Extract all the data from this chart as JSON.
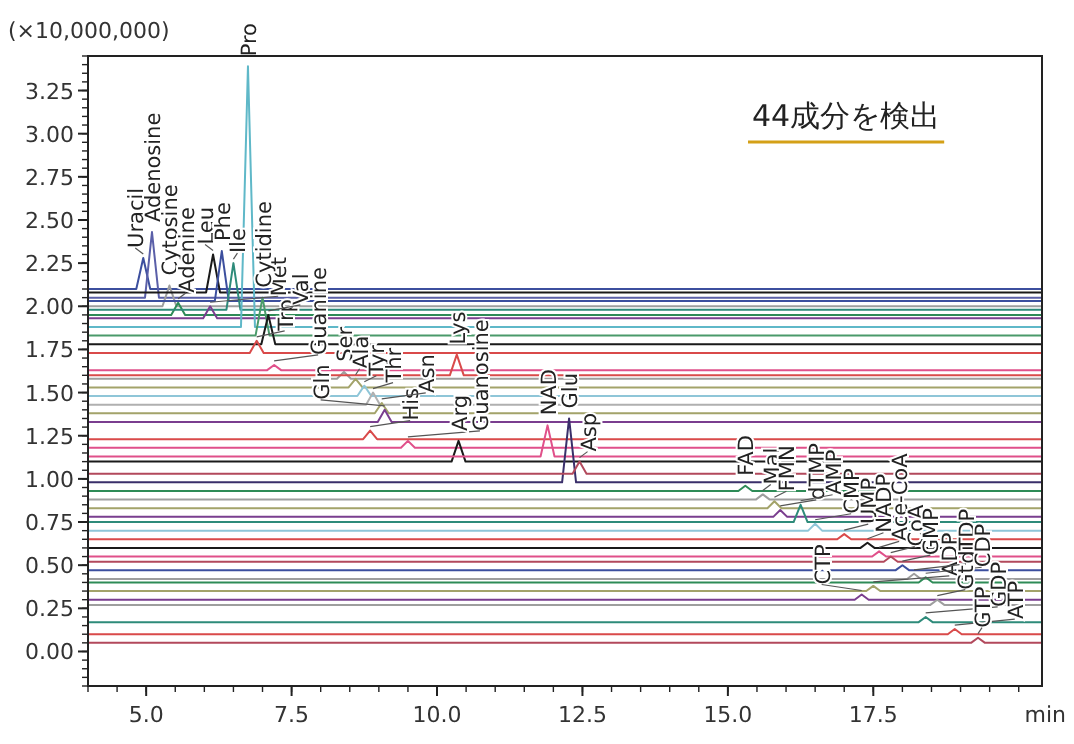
{
  "chart_data": {
    "type": "line",
    "ylabel": "(×10,000,000)",
    "xlabel": "min",
    "annotations": [
      "44成分を検出",
      {
        "text": "Uracil",
        "x": 4.95,
        "y": 2.28
      },
      {
        "text": "Adenosine",
        "x": 5.1,
        "y": 2.43
      },
      {
        "text": "Cytosine",
        "x": 5.4,
        "y": 2.12
      },
      {
        "text": "Adenine",
        "x": 5.55,
        "y": 2.02
      },
      {
        "text": "Leu",
        "x": 6.15,
        "y": 2.3
      },
      {
        "text": "Phe",
        "x": 6.3,
        "y": 2.32
      },
      {
        "text": "Ile",
        "x": 6.5,
        "y": 2.25
      },
      {
        "text": "Met",
        "x": 6.1,
        "y": 2.0
      },
      {
        "text": "Pro",
        "x": 6.75,
        "y": 3.39
      },
      {
        "text": "Cytidine",
        "x": 7.0,
        "y": 2.05
      },
      {
        "text": "Val",
        "x": 7.1,
        "y": 1.95
      },
      {
        "text": "Trp",
        "x": 6.9,
        "y": 1.8
      },
      {
        "text": "Guanine",
        "x": 7.2,
        "y": 1.66
      },
      {
        "text": "Ser",
        "x": 8.4,
        "y": 1.62
      },
      {
        "text": "Ala",
        "x": 8.6,
        "y": 1.58
      },
      {
        "text": "Tyr",
        "x": 8.75,
        "y": 1.54
      },
      {
        "text": "Thr",
        "x": 8.9,
        "y": 1.5
      },
      {
        "text": "Asn",
        "x": 9.05,
        "y": 1.44
      },
      {
        "text": "Gln",
        "x": 9.1,
        "y": 1.4
      },
      {
        "text": "His",
        "x": 8.85,
        "y": 1.28
      },
      {
        "text": "Guanosine",
        "x": 9.5,
        "y": 1.22
      },
      {
        "text": "Arg",
        "x": 10.37,
        "y": 1.22
      },
      {
        "text": "Lys",
        "x": 10.34,
        "y": 1.72
      },
      {
        "text": "NAD",
        "x": 11.9,
        "y": 1.31
      },
      {
        "text": "Glu",
        "x": 12.27,
        "y": 1.35
      },
      {
        "text": "Asp",
        "x": 12.45,
        "y": 1.1
      },
      {
        "text": "FAD",
        "x": 15.3,
        "y": 0.96
      },
      {
        "text": "Mal",
        "x": 15.6,
        "y": 0.91
      },
      {
        "text": "FMN",
        "x": 15.8,
        "y": 0.87
      },
      {
        "text": "dTMP",
        "x": 15.9,
        "y": 0.82
      },
      {
        "text": "AMP",
        "x": 16.25,
        "y": 0.85
      },
      {
        "text": "CMP",
        "x": 16.5,
        "y": 0.74
      },
      {
        "text": "UMP",
        "x": 17.0,
        "y": 0.68
      },
      {
        "text": "NADP",
        "x": 17.4,
        "y": 0.63
      },
      {
        "text": "Ace-CoA",
        "x": 17.6,
        "y": 0.58
      },
      {
        "text": "CoA",
        "x": 17.8,
        "y": 0.55
      },
      {
        "text": "GMP",
        "x": 18.0,
        "y": 0.5
      },
      {
        "text": "dTDP",
        "x": 18.2,
        "y": 0.45
      },
      {
        "text": "CDP",
        "x": 18.4,
        "y": 0.43
      },
      {
        "text": "ADP",
        "x": 17.5,
        "y": 0.38
      },
      {
        "text": "CTP",
        "x": 17.3,
        "y": 0.33
      },
      {
        "text": "Gt",
        "x": 18.6,
        "y": 0.3
      },
      {
        "text": "GDP",
        "x": 18.4,
        "y": 0.2
      },
      {
        "text": "ATP",
        "x": 18.9,
        "y": 0.13
      },
      {
        "text": "GTP",
        "x": 19.3,
        "y": 0.08
      }
    ],
    "xlim": [
      4.0,
      20.4
    ],
    "ylim": [
      -0.2,
      3.45
    ],
    "xticks": [
      {
        "value": 5,
        "label": "5.0"
      },
      7.5,
      {
        "value": 10,
        "label": "10.0"
      },
      12.5,
      {
        "value": 15,
        "label": "15.0"
      },
      17.5
    ],
    "yticks": [
      {
        "value": 0,
        "label": "0.00"
      },
      0.25,
      {
        "value": 0.5,
        "label": "0.50"
      },
      0.75,
      {
        "value": 1,
        "label": "1.00"
      },
      1.25,
      {
        "value": 1.5,
        "label": "1.50"
      },
      1.75,
      {
        "value": 2,
        "label": "2.00"
      },
      2.25,
      {
        "value": 2.5,
        "label": "2.50"
      },
      2.75,
      {
        "value": 3,
        "label": "3.00"
      },
      3.25
    ],
    "grid": false,
    "marker": "none",
    "series": [
      {
        "color": "#3c4f9e",
        "x": [
          4.0,
          4.83,
          4.95,
          5.07,
          20.4
        ],
        "values": [
          2.1,
          2.1,
          2.28,
          2.1,
          2.1
        ]
      },
      {
        "color": "#5a5fa8",
        "x": [
          4.0,
          4.98,
          5.1,
          5.22,
          20.4
        ],
        "values": [
          2.05,
          2.05,
          2.43,
          2.05,
          2.05
        ]
      },
      {
        "color": "#9e9e9e",
        "x": [
          4.0,
          5.28,
          5.4,
          5.52,
          20.4
        ],
        "values": [
          2.0,
          2.0,
          2.12,
          2.0,
          2.0
        ]
      },
      {
        "color": "#2e8b57",
        "x": [
          4.0,
          5.43,
          5.55,
          5.67,
          20.4
        ],
        "values": [
          1.95,
          1.95,
          2.02,
          1.95,
          1.95
        ]
      },
      {
        "color": "#1a1a1a",
        "x": [
          4.0,
          6.03,
          6.15,
          6.27,
          20.4
        ],
        "values": [
          2.08,
          2.08,
          2.3,
          2.08,
          2.08
        ]
      },
      {
        "color": "#3c4f9e",
        "x": [
          4.0,
          6.18,
          6.3,
          6.42,
          20.4
        ],
        "values": [
          2.03,
          2.03,
          2.32,
          2.03,
          2.03
        ]
      },
      {
        "color": "#2e8b7a",
        "x": [
          4.0,
          6.38,
          6.5,
          6.62,
          20.4
        ],
        "values": [
          1.98,
          1.98,
          2.25,
          1.98,
          1.98
        ]
      },
      {
        "color": "#7a3e8f",
        "x": [
          4.0,
          5.98,
          6.1,
          6.22,
          20.4
        ],
        "values": [
          1.93,
          1.93,
          2.0,
          1.93,
          1.93
        ]
      },
      {
        "color": "#5fb8c8",
        "x": [
          4.0,
          6.63,
          6.75,
          6.87,
          20.4
        ],
        "values": [
          1.88,
          1.88,
          3.39,
          1.88,
          1.88
        ]
      },
      {
        "color": "#4a9a6a",
        "x": [
          4.0,
          6.88,
          7.0,
          7.12,
          20.4
        ],
        "values": [
          1.83,
          1.83,
          2.05,
          1.83,
          1.83
        ]
      },
      {
        "color": "#1a1a1a",
        "x": [
          4.0,
          6.98,
          7.1,
          7.22,
          20.4
        ],
        "values": [
          1.78,
          1.78,
          1.95,
          1.78,
          1.78
        ]
      },
      {
        "color": "#d94a4a",
        "x": [
          4.0,
          6.78,
          6.9,
          7.02,
          20.4
        ],
        "values": [
          1.73,
          1.73,
          1.8,
          1.73,
          1.73
        ]
      },
      {
        "color": "#e0508a",
        "x": [
          4.0,
          7.08,
          7.2,
          7.32,
          20.4
        ],
        "values": [
          1.63,
          1.63,
          1.66,
          1.63,
          1.63
        ]
      },
      {
        "color": "#9e9e9e",
        "x": [
          4.0,
          8.28,
          8.4,
          8.52,
          20.4
        ],
        "values": [
          1.58,
          1.58,
          1.62,
          1.58,
          1.58
        ]
      },
      {
        "color": "#a3a36a",
        "x": [
          4.0,
          8.48,
          8.6,
          8.72,
          20.4
        ],
        "values": [
          1.53,
          1.53,
          1.58,
          1.53,
          1.53
        ]
      },
      {
        "color": "#8fc6d8",
        "x": [
          4.0,
          8.63,
          8.75,
          8.87,
          20.4
        ],
        "values": [
          1.48,
          1.48,
          1.54,
          1.48,
          1.48
        ]
      },
      {
        "color": "#b0b0b0",
        "x": [
          4.0,
          8.78,
          8.9,
          9.02,
          20.4
        ],
        "values": [
          1.43,
          1.43,
          1.5,
          1.43,
          1.43
        ]
      },
      {
        "color": "#a3a36a",
        "x": [
          4.0,
          8.93,
          9.05,
          9.17,
          20.4
        ],
        "values": [
          1.38,
          1.38,
          1.44,
          1.38,
          1.38
        ]
      },
      {
        "color": "#7a3e8f",
        "x": [
          4.0,
          8.98,
          9.1,
          9.22,
          20.4
        ],
        "values": [
          1.33,
          1.33,
          1.4,
          1.33,
          1.33
        ]
      },
      {
        "color": "#d94a4a",
        "x": [
          4.0,
          8.73,
          8.85,
          8.97,
          20.4
        ],
        "values": [
          1.23,
          1.23,
          1.28,
          1.23,
          1.23
        ]
      },
      {
        "color": "#e0508a",
        "x": [
          4.0,
          9.38,
          9.5,
          9.62,
          20.4
        ],
        "values": [
          1.18,
          1.18,
          1.22,
          1.18,
          1.18
        ]
      },
      {
        "color": "#1a1a1a",
        "x": [
          4.0,
          10.25,
          10.37,
          10.49,
          20.4
        ],
        "values": [
          1.1,
          1.1,
          1.22,
          1.1,
          1.1
        ]
      },
      {
        "color": "#d94a4a",
        "x": [
          4.0,
          10.22,
          10.34,
          10.46,
          20.4
        ],
        "values": [
          1.6,
          1.6,
          1.72,
          1.6,
          1.6
        ]
      },
      {
        "color": "#e0508a",
        "x": [
          4.0,
          11.78,
          11.9,
          12.02,
          20.4
        ],
        "values": [
          1.13,
          1.13,
          1.31,
          1.13,
          1.13
        ]
      },
      {
        "color": "#3a2f6a",
        "x": [
          4.0,
          12.15,
          12.27,
          12.39,
          20.4
        ],
        "values": [
          0.98,
          0.98,
          1.35,
          0.98,
          0.98
        ]
      },
      {
        "color": "#b2495c",
        "x": [
          4.0,
          12.33,
          12.45,
          12.57,
          20.4
        ],
        "values": [
          1.03,
          1.03,
          1.1,
          1.03,
          1.03
        ]
      },
      {
        "color": "#2e8b57",
        "x": [
          4.0,
          15.18,
          15.3,
          15.42,
          20.4
        ],
        "values": [
          0.93,
          0.93,
          0.96,
          0.93,
          0.93
        ]
      },
      {
        "color": "#9e9e9e",
        "x": [
          4.0,
          15.48,
          15.6,
          15.72,
          20.4
        ],
        "values": [
          0.88,
          0.88,
          0.91,
          0.88,
          0.88
        ]
      },
      {
        "color": "#a3a36a",
        "x": [
          4.0,
          15.68,
          15.8,
          15.92,
          20.4
        ],
        "values": [
          0.83,
          0.83,
          0.87,
          0.83,
          0.83
        ]
      },
      {
        "color": "#7a3e8f",
        "x": [
          4.0,
          15.78,
          15.9,
          16.02,
          20.4
        ],
        "values": [
          0.78,
          0.78,
          0.82,
          0.78,
          0.78
        ]
      },
      {
        "color": "#2e8b7a",
        "x": [
          4.0,
          16.13,
          16.25,
          16.37,
          20.4
        ],
        "values": [
          0.75,
          0.75,
          0.85,
          0.75,
          0.75
        ]
      },
      {
        "color": "#8fc6d8",
        "x": [
          4.0,
          16.38,
          16.5,
          16.62,
          20.4
        ],
        "values": [
          0.7,
          0.7,
          0.74,
          0.7,
          0.7
        ]
      },
      {
        "color": "#d94a4a",
        "x": [
          4.0,
          16.88,
          17.0,
          17.12,
          20.4
        ],
        "values": [
          0.65,
          0.65,
          0.68,
          0.65,
          0.65
        ]
      },
      {
        "color": "#1a1a1a",
        "x": [
          4.0,
          17.28,
          17.4,
          17.52,
          20.4
        ],
        "values": [
          0.6,
          0.6,
          0.63,
          0.6,
          0.6
        ]
      },
      {
        "color": "#e0508a",
        "x": [
          4.0,
          17.48,
          17.6,
          17.72,
          20.4
        ],
        "values": [
          0.55,
          0.55,
          0.58,
          0.55,
          0.55
        ]
      },
      {
        "color": "#b2495c",
        "x": [
          4.0,
          17.68,
          17.8,
          17.92,
          20.4
        ],
        "values": [
          0.52,
          0.52,
          0.55,
          0.52,
          0.52
        ]
      },
      {
        "color": "#3c4f9e",
        "x": [
          4.0,
          17.88,
          18.0,
          18.12,
          20.4
        ],
        "values": [
          0.47,
          0.47,
          0.5,
          0.47,
          0.47
        ]
      },
      {
        "color": "#9e9e9e",
        "x": [
          4.0,
          18.08,
          18.2,
          18.32,
          20.4
        ],
        "values": [
          0.42,
          0.42,
          0.45,
          0.42,
          0.42
        ]
      },
      {
        "color": "#2e8b57",
        "x": [
          4.0,
          18.28,
          18.4,
          18.52,
          20.4
        ],
        "values": [
          0.4,
          0.4,
          0.43,
          0.4,
          0.4
        ]
      },
      {
        "color": "#a3a36a",
        "x": [
          4.0,
          17.38,
          17.5,
          17.62,
          20.4
        ],
        "values": [
          0.35,
          0.35,
          0.38,
          0.35,
          0.35
        ]
      },
      {
        "color": "#7a3e8f",
        "x": [
          4.0,
          17.18,
          17.3,
          17.42,
          20.4
        ],
        "values": [
          0.3,
          0.3,
          0.33,
          0.3,
          0.3
        ]
      },
      {
        "color": "#9e9e9e",
        "x": [
          4.0,
          18.48,
          18.6,
          18.72,
          20.4
        ],
        "values": [
          0.27,
          0.27,
          0.3,
          0.27,
          0.27
        ]
      },
      {
        "color": "#2e8b7a",
        "x": [
          4.0,
          18.28,
          18.4,
          18.52,
          20.4
        ],
        "values": [
          0.17,
          0.17,
          0.2,
          0.17,
          0.17
        ]
      },
      {
        "color": "#d94a4a",
        "x": [
          4.0,
          18.78,
          18.9,
          19.02,
          20.4
        ],
        "values": [
          0.1,
          0.1,
          0.13,
          0.1,
          0.1
        ]
      },
      {
        "color": "#b2495c",
        "x": [
          4.0,
          19.18,
          19.3,
          19.42,
          20.4
        ],
        "values": [
          0.05,
          0.05,
          0.08,
          0.05,
          0.05
        ]
      }
    ]
  }
}
